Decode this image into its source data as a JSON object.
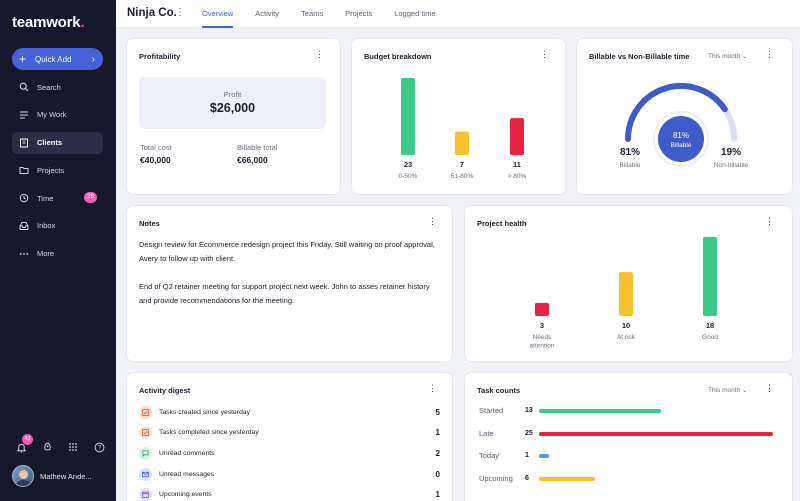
{
  "app": {
    "logo": "teamwork",
    "logo_dot": "."
  },
  "sidebar": {
    "quick_add": "Quick Add",
    "items": [
      {
        "label": "Search",
        "icon": "search-icon"
      },
      {
        "label": "My Work",
        "icon": "list-icon"
      },
      {
        "label": "Clients",
        "icon": "building-icon",
        "active": true
      },
      {
        "label": "Projects",
        "icon": "folder-icon"
      },
      {
        "label": "Time",
        "icon": "clock-icon",
        "badge": "28"
      },
      {
        "label": "Inbox",
        "icon": "inbox-icon"
      },
      {
        "label": "More",
        "icon": "more-icon"
      }
    ],
    "notifications_badge": "43",
    "user_name": "Mathew Ande..."
  },
  "header": {
    "project": "Ninja Co.",
    "tabs": [
      "Overview",
      "Activity",
      "Teams",
      "Projects",
      "Logged time"
    ],
    "active_tab": "Overview"
  },
  "profitability": {
    "title": "Profitability",
    "profit_label": "Profit",
    "profit_value": "$26,000",
    "total_cost_label": "Total cost",
    "total_cost_value": "€40,000",
    "billable_total_label": "Billable total",
    "billable_total_value": "€66,000"
  },
  "budget": {
    "title": "Budget breakdown",
    "bars": [
      {
        "value": 23,
        "label": "0-50%",
        "color": "#3ec98a"
      },
      {
        "value": 7,
        "label": "51-80%",
        "color": "#f8c12e"
      },
      {
        "value": 11,
        "label": "> 80%",
        "color": "#e8233f"
      }
    ]
  },
  "billable": {
    "title": "Billable vs Non-Billable time",
    "period": "This month",
    "center_value": "81%",
    "center_label": "Billable",
    "left_value": "81%",
    "left_label": "Billable",
    "right_value": "19%",
    "right_label": "Non-billable",
    "billable_fraction": 0.81,
    "colors": {
      "billable": "#3e5cc9",
      "nonbillable": "#d9def4"
    }
  },
  "notes": {
    "title": "Notes",
    "paragraphs": [
      "Design review for Ecommerce redesign project this Friday. Still waiting on proof approval, Avery to follow up with client.",
      "End of Q2 retainer meeting for support project next week. John to asses retainer history and provide recommendations for the meeting."
    ]
  },
  "health": {
    "title": "Project health",
    "bars": [
      {
        "value": 3,
        "label": "Needs attention",
        "color": "#e8233f"
      },
      {
        "value": 10,
        "label": "At risk",
        "color": "#f8c12e"
      },
      {
        "value": 18,
        "label": "Good",
        "color": "#3ec98a"
      }
    ]
  },
  "digest": {
    "title": "Activity digest",
    "rows": [
      {
        "label": "Tasks created since yesterday",
        "count": "5",
        "icon": "task-check-icon",
        "bg": "#fde0d2",
        "fg": "#e5633a"
      },
      {
        "label": "Tasks completed since yesterday",
        "count": "1",
        "icon": "task-check-icon",
        "bg": "#fde0d2",
        "fg": "#e5633a"
      },
      {
        "label": "Unread comments",
        "count": "2",
        "icon": "comment-icon",
        "bg": "#d3f2e2",
        "fg": "#2fa56c"
      },
      {
        "label": "Unread messages",
        "count": "0",
        "icon": "mail-icon",
        "bg": "#d9e2fb",
        "fg": "#3e5cc9"
      },
      {
        "label": "Upcoming events",
        "count": "1",
        "icon": "calendar-icon",
        "bg": "#e6ddfb",
        "fg": "#7a50d8"
      }
    ]
  },
  "tasks": {
    "title": "Task counts",
    "period": "This month",
    "rows": [
      {
        "label": "Started",
        "value": 13,
        "color": "#3ec98a"
      },
      {
        "label": "Late",
        "value": 25,
        "color": "#e8233f"
      },
      {
        "label": "Today",
        "value": 1,
        "color": "#4a9ff5"
      },
      {
        "label": "Upcoming",
        "value": 6,
        "color": "#f8c12e"
      }
    ],
    "max": 25
  }
}
